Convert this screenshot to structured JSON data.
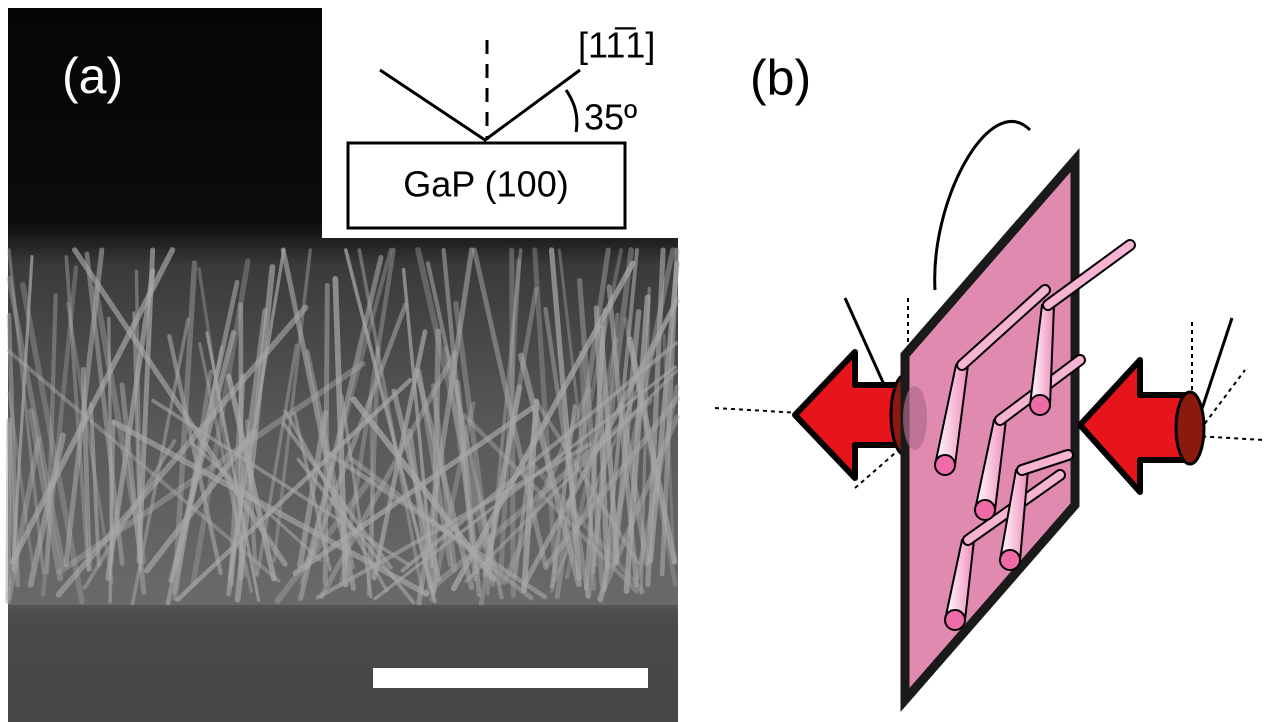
{
  "panel_a": {
    "label": "(a)",
    "inset": {
      "direction": "[11̅1]",
      "angle": "35º",
      "substrate": "GaP (100)"
    }
  },
  "panel_b": {
    "label": "(b)"
  }
}
